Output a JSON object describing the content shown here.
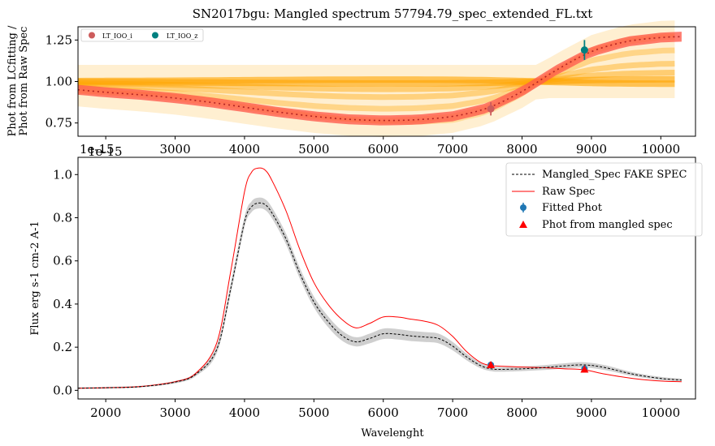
{
  "chart_data": [
    {
      "type": "line",
      "title": "SN2017bgu: Mangled spectrum 57794.79_spec_extended_FL.txt",
      "ylabel_line1": "Phot from LCfitting /",
      "ylabel_line2": "Phot from Raw Spec",
      "x_tick_labels": [
        "2000",
        "3000",
        "4000",
        "5000",
        "6000",
        "7000",
        "8000",
        "9000",
        "10000"
      ],
      "x_ticks": [
        2000,
        3000,
        4000,
        5000,
        6000,
        7000,
        8000,
        9000,
        10000
      ],
      "offset_text": "1e-15",
      "overlay_tick_label": "1e-15",
      "y_ticks": [
        0.75,
        1.0,
        1.25
      ],
      "y_tick_labels": [
        "0.75",
        "1.00",
        "1.25"
      ],
      "xlim": [
        1600,
        10500
      ],
      "ylim": [
        0.67,
        1.33
      ],
      "legend": {
        "placement": "top-left",
        "entries": [
          {
            "name": "LT_IOO_i",
            "color": "#cd5c5c"
          },
          {
            "name": "LT_IOO_z",
            "color": "#008080"
          }
        ]
      },
      "mangling_curve": {
        "x": [
          1600,
          2000,
          2500,
          3000,
          3500,
          4000,
          4500,
          5000,
          5500,
          6000,
          6500,
          7000,
          7500,
          8000,
          8500,
          9000,
          9500,
          10000,
          10300
        ],
        "y": [
          0.95,
          0.935,
          0.92,
          0.9,
          0.875,
          0.845,
          0.815,
          0.79,
          0.772,
          0.765,
          0.77,
          0.79,
          0.84,
          0.94,
          1.07,
          1.18,
          1.24,
          1.265,
          1.27
        ]
      },
      "band_halfwidth": 0.03,
      "samples_color": "#ffa500",
      "points": [
        {
          "name": "LT_IOO_i",
          "x": 7550,
          "y": 0.835,
          "err": 0.04,
          "color": "#cd5c5c"
        },
        {
          "name": "LT_IOO_z",
          "x": 8900,
          "y": 1.19,
          "err": 0.06,
          "color": "#008080"
        }
      ]
    },
    {
      "type": "line",
      "xlabel": "Wavelenght",
      "ylabel": "Flux erg s-1 cm-2 A-1",
      "x_ticks": [
        2000,
        3000,
        4000,
        5000,
        6000,
        7000,
        8000,
        9000,
        10000
      ],
      "x_tick_labels": [
        "2000",
        "3000",
        "4000",
        "5000",
        "6000",
        "7000",
        "8000",
        "9000",
        "10000"
      ],
      "y_ticks": [
        0.0,
        0.2,
        0.4,
        0.6,
        0.8,
        1.0
      ],
      "y_tick_labels": [
        "0.0",
        "0.2",
        "0.4",
        "0.6",
        "0.8",
        "1.0"
      ],
      "xlim": [
        1600,
        10500
      ],
      "ylim": [
        -0.04,
        1.08
      ],
      "legend": {
        "placement": "top-right",
        "entries": [
          {
            "name": "Mangled_Spec FAKE SPEC",
            "style": "dashed-black"
          },
          {
            "name": "Raw Spec",
            "style": "red-line"
          },
          {
            "name": "Fitted Phot",
            "style": "blue-errorbar"
          },
          {
            "name": "Phot from mangled spec",
            "style": "red-triangle"
          }
        ]
      },
      "series": [
        {
          "name": "Raw Spec",
          "color": "#ff0000",
          "x": [
            1600,
            2000,
            2500,
            3000,
            3300,
            3600,
            3800,
            4000,
            4100,
            4200,
            4300,
            4400,
            4600,
            4800,
            5000,
            5200,
            5400,
            5600,
            5800,
            6000,
            6200,
            6400,
            6600,
            6800,
            7000,
            7200,
            7400,
            7550,
            7700,
            8000,
            8300,
            8600,
            8900,
            9200,
            9600,
            10000,
            10300
          ],
          "y": [
            0.01,
            0.012,
            0.018,
            0.04,
            0.08,
            0.22,
            0.55,
            0.92,
            1.01,
            1.03,
            1.02,
            0.97,
            0.83,
            0.65,
            0.5,
            0.4,
            0.33,
            0.29,
            0.31,
            0.34,
            0.34,
            0.33,
            0.32,
            0.3,
            0.25,
            0.18,
            0.13,
            0.115,
            0.112,
            0.108,
            0.105,
            0.1,
            0.095,
            0.075,
            0.055,
            0.043,
            0.04
          ]
        },
        {
          "name": "Mangled_Spec FAKE SPEC",
          "color": "#000000",
          "x": [
            1600,
            2000,
            2500,
            3000,
            3300,
            3600,
            3800,
            4000,
            4100,
            4200,
            4300,
            4400,
            4600,
            4800,
            5000,
            5200,
            5400,
            5600,
            5800,
            6000,
            6200,
            6400,
            6600,
            6800,
            7000,
            7200,
            7400,
            7550,
            7700,
            8000,
            8300,
            8600,
            8900,
            9200,
            9600,
            10000,
            10300
          ],
          "y": [
            0.01,
            0.012,
            0.017,
            0.038,
            0.075,
            0.19,
            0.47,
            0.78,
            0.85,
            0.868,
            0.86,
            0.82,
            0.7,
            0.54,
            0.41,
            0.32,
            0.255,
            0.225,
            0.24,
            0.262,
            0.26,
            0.252,
            0.247,
            0.24,
            0.205,
            0.155,
            0.115,
            0.1,
            0.097,
            0.1,
            0.105,
            0.113,
            0.118,
            0.105,
            0.075,
            0.055,
            0.048
          ]
        }
      ],
      "mangled_band_halfwidth": 0.025,
      "fitted_phot": [
        {
          "x": 7550,
          "y": 0.118,
          "err": 0.008
        },
        {
          "x": 8900,
          "y": 0.1,
          "err": 0.01
        }
      ],
      "mangled_phot": [
        {
          "x": 7550,
          "y": 0.118
        },
        {
          "x": 8900,
          "y": 0.097
        }
      ]
    }
  ]
}
